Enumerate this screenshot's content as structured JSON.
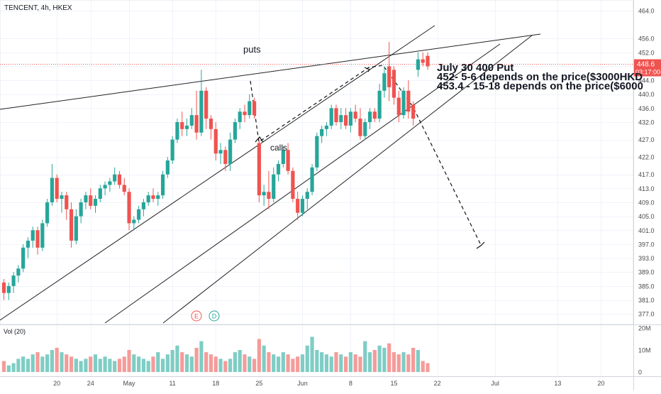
{
  "header": {
    "symbol_label": "TENCENT, 4h, HKEX"
  },
  "price_tag": {
    "price": "448.6",
    "countdown": "03:17:00"
  },
  "annotations": {
    "puts": "puts",
    "calls": "calls",
    "note_line1": "July 30 400 Put",
    "note_line2": "452- 5-6 depends on the price($3000HKD",
    "note_line3": "453.4 - 15-18 depends on the price($6000"
  },
  "markers": {
    "earnings": "E",
    "dividend": "D"
  },
  "volume_panel": {
    "label": "Vol (20)",
    "tick_labels": [
      "20M",
      "10M",
      "0"
    ],
    "tick_values": [
      20,
      10,
      0
    ]
  },
  "colors": {
    "up": "#26a69a",
    "down": "#ef5350",
    "up_volume": "#7fcdc5",
    "down_volume": "#f49c9a",
    "last_price": "#ef5350",
    "axis_text": "#4a4a4a",
    "trendline": "#222222"
  },
  "chart_data": {
    "type": "candlestick",
    "title": "TENCENT, 4h, HKEX",
    "ylim": [
      375,
      466
    ],
    "last_price": 448.6,
    "y_ticks": [
      377,
      381,
      385,
      389,
      393,
      397,
      401,
      405,
      409,
      413,
      417,
      422,
      427,
      432,
      436,
      440,
      444,
      448,
      452,
      456,
      464
    ],
    "x_ticks": [
      {
        "label": "20",
        "index": 11
      },
      {
        "label": "24",
        "index": 18
      },
      {
        "label": "May",
        "index": 26
      },
      {
        "label": "11",
        "index": 35
      },
      {
        "label": "18",
        "index": 44
      },
      {
        "label": "25",
        "index": 53
      },
      {
        "label": "Jun",
        "index": 62
      },
      {
        "label": "8",
        "index": 72
      },
      {
        "label": "15",
        "index": 81
      },
      {
        "label": "22",
        "index": 90
      },
      {
        "label": "Jul",
        "index": 102
      },
      {
        "label": "13",
        "index": 115
      },
      {
        "label": "20",
        "index": 124
      }
    ],
    "candles": [
      {
        "o": 386,
        "h": 387,
        "l": 381,
        "c": 383
      },
      {
        "o": 383,
        "h": 386,
        "l": 381,
        "c": 385
      },
      {
        "o": 385,
        "h": 389,
        "l": 383,
        "c": 388
      },
      {
        "o": 388,
        "h": 391,
        "l": 386,
        "c": 390
      },
      {
        "o": 390,
        "h": 397,
        "l": 389,
        "c": 396
      },
      {
        "o": 396,
        "h": 399,
        "l": 393,
        "c": 398
      },
      {
        "o": 398,
        "h": 402,
        "l": 396,
        "c": 401
      },
      {
        "o": 401,
        "h": 402,
        "l": 394,
        "c": 396
      },
      {
        "o": 396,
        "h": 404,
        "l": 395,
        "c": 403
      },
      {
        "o": 403,
        "h": 410,
        "l": 402,
        "c": 409
      },
      {
        "o": 409,
        "h": 420,
        "l": 408,
        "c": 416
      },
      {
        "o": 416,
        "h": 417,
        "l": 409,
        "c": 410
      },
      {
        "o": 410,
        "h": 412,
        "l": 406,
        "c": 411
      },
      {
        "o": 411,
        "h": 412,
        "l": 404,
        "c": 407
      },
      {
        "o": 407,
        "h": 409,
        "l": 396,
        "c": 398
      },
      {
        "o": 398,
        "h": 407,
        "l": 397,
        "c": 405
      },
      {
        "o": 405,
        "h": 410,
        "l": 403,
        "c": 409
      },
      {
        "o": 409,
        "h": 412,
        "l": 407,
        "c": 411
      },
      {
        "o": 411,
        "h": 413,
        "l": 407,
        "c": 408
      },
      {
        "o": 408,
        "h": 411,
        "l": 406,
        "c": 410
      },
      {
        "o": 410,
        "h": 414,
        "l": 409,
        "c": 413
      },
      {
        "o": 413,
        "h": 415,
        "l": 411,
        "c": 414
      },
      {
        "o": 414,
        "h": 416,
        "l": 412,
        "c": 415
      },
      {
        "o": 415,
        "h": 419,
        "l": 414,
        "c": 417
      },
      {
        "o": 417,
        "h": 418,
        "l": 413,
        "c": 414
      },
      {
        "o": 414,
        "h": 416,
        "l": 411,
        "c": 412
      },
      {
        "o": 412,
        "h": 413,
        "l": 401,
        "c": 403
      },
      {
        "o": 403,
        "h": 405,
        "l": 401,
        "c": 404
      },
      {
        "o": 404,
        "h": 408,
        "l": 403,
        "c": 407
      },
      {
        "o": 407,
        "h": 410,
        "l": 405,
        "c": 409
      },
      {
        "o": 409,
        "h": 412,
        "l": 408,
        "c": 411
      },
      {
        "o": 411,
        "h": 413,
        "l": 409,
        "c": 410
      },
      {
        "o": 410,
        "h": 412,
        "l": 408,
        "c": 411
      },
      {
        "o": 411,
        "h": 418,
        "l": 410,
        "c": 417
      },
      {
        "o": 417,
        "h": 422,
        "l": 416,
        "c": 421
      },
      {
        "o": 421,
        "h": 428,
        "l": 420,
        "c": 427
      },
      {
        "o": 427,
        "h": 433,
        "l": 426,
        "c": 432
      },
      {
        "o": 432,
        "h": 435,
        "l": 428,
        "c": 430
      },
      {
        "o": 430,
        "h": 433,
        "l": 428,
        "c": 431
      },
      {
        "o": 431,
        "h": 436,
        "l": 430,
        "c": 434
      },
      {
        "o": 434,
        "h": 441,
        "l": 427,
        "c": 429
      },
      {
        "o": 429,
        "h": 447,
        "l": 428,
        "c": 441
      },
      {
        "o": 441,
        "h": 442,
        "l": 430,
        "c": 433
      },
      {
        "o": 433,
        "h": 434,
        "l": 427,
        "c": 430
      },
      {
        "o": 430,
        "h": 432,
        "l": 421,
        "c": 423
      },
      {
        "o": 423,
        "h": 426,
        "l": 420,
        "c": 424
      },
      {
        "o": 424,
        "h": 425,
        "l": 418,
        "c": 420
      },
      {
        "o": 420,
        "h": 429,
        "l": 418,
        "c": 427
      },
      {
        "o": 427,
        "h": 433,
        "l": 426,
        "c": 432
      },
      {
        "o": 432,
        "h": 436,
        "l": 430,
        "c": 435
      },
      {
        "o": 435,
        "h": 437,
        "l": 432,
        "c": 434
      },
      {
        "o": 434,
        "h": 440,
        "l": 433,
        "c": 438
      },
      {
        "o": 438,
        "h": 439,
        "l": 433,
        "c": 434
      },
      {
        "o": 426,
        "h": 427,
        "l": 409,
        "c": 411
      },
      {
        "o": 411,
        "h": 414,
        "l": 408,
        "c": 412
      },
      {
        "o": 412,
        "h": 418,
        "l": 407,
        "c": 410
      },
      {
        "o": 410,
        "h": 419,
        "l": 409,
        "c": 417
      },
      {
        "o": 417,
        "h": 421,
        "l": 415,
        "c": 420
      },
      {
        "o": 420,
        "h": 425,
        "l": 419,
        "c": 424
      },
      {
        "o": 424,
        "h": 426,
        "l": 417,
        "c": 418
      },
      {
        "o": 418,
        "h": 419,
        "l": 409,
        "c": 410
      },
      {
        "o": 410,
        "h": 412,
        "l": 404,
        "c": 406
      },
      {
        "o": 406,
        "h": 411,
        "l": 405,
        "c": 410
      },
      {
        "o": 410,
        "h": 413,
        "l": 407,
        "c": 412
      },
      {
        "o": 412,
        "h": 420,
        "l": 411,
        "c": 419
      },
      {
        "o": 419,
        "h": 429,
        "l": 418,
        "c": 428
      },
      {
        "o": 428,
        "h": 431,
        "l": 426,
        "c": 430
      },
      {
        "o": 430,
        "h": 432,
        "l": 428,
        "c": 431
      },
      {
        "o": 431,
        "h": 437,
        "l": 430,
        "c": 436
      },
      {
        "o": 436,
        "h": 437,
        "l": 431,
        "c": 432
      },
      {
        "o": 432,
        "h": 436,
        "l": 430,
        "c": 434
      },
      {
        "o": 434,
        "h": 436,
        "l": 430,
        "c": 431
      },
      {
        "o": 431,
        "h": 436,
        "l": 429,
        "c": 435
      },
      {
        "o": 435,
        "h": 437,
        "l": 432,
        "c": 433
      },
      {
        "o": 433,
        "h": 436,
        "l": 427,
        "c": 428
      },
      {
        "o": 428,
        "h": 433,
        "l": 427,
        "c": 432
      },
      {
        "o": 432,
        "h": 436,
        "l": 430,
        "c": 435
      },
      {
        "o": 435,
        "h": 436,
        "l": 432,
        "c": 433
      },
      {
        "o": 433,
        "h": 443,
        "l": 432,
        "c": 441
      },
      {
        "o": 441,
        "h": 448,
        "l": 439,
        "c": 446
      },
      {
        "o": 448,
        "h": 455,
        "l": 438,
        "c": 442
      },
      {
        "o": 447,
        "h": 448,
        "l": 437,
        "c": 439
      },
      {
        "o": 439,
        "h": 441,
        "l": 432,
        "c": 434
      },
      {
        "o": 434,
        "h": 442,
        "l": 433,
        "c": 441
      },
      {
        "o": 441,
        "h": 444,
        "l": 433,
        "c": 435
      },
      {
        "o": 437,
        "h": 438,
        "l": 431,
        "c": 433
      },
      {
        "o": 447,
        "h": 452,
        "l": 445,
        "c": 450
      },
      {
        "o": 450,
        "h": 452,
        "l": 448,
        "c": 449
      },
      {
        "o": 451,
        "h": 452,
        "l": 447,
        "c": 448
      }
    ],
    "volume": [
      5,
      3,
      4,
      6,
      7,
      6,
      8,
      9,
      7,
      8,
      10,
      11,
      9,
      8,
      7,
      6,
      5,
      6,
      7,
      8,
      6,
      7,
      6,
      5,
      6,
      7,
      10,
      8,
      7,
      6,
      5,
      7,
      9,
      6,
      8,
      10,
      12,
      9,
      8,
      7,
      11,
      14,
      9,
      8,
      7,
      6,
      5,
      6,
      9,
      10,
      8,
      7,
      6,
      15,
      12,
      9,
      8,
      7,
      9,
      8,
      6,
      7,
      8,
      12,
      16,
      10,
      9,
      8,
      7,
      9,
      8,
      7,
      9,
      8,
      7,
      14,
      9,
      10,
      12,
      11,
      13,
      9,
      8,
      9,
      8,
      11,
      10,
      5,
      4
    ],
    "volume_max": 20
  }
}
